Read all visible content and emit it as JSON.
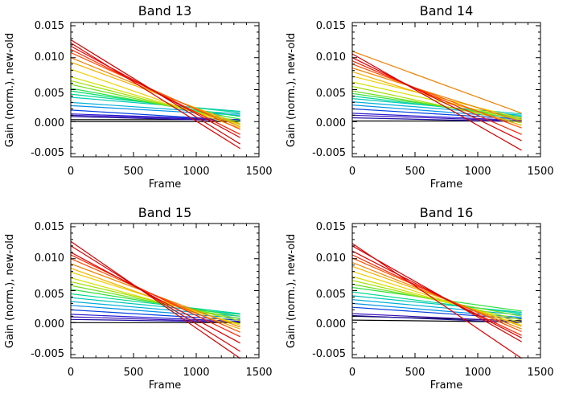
{
  "chart_data": [
    {
      "type": "line",
      "title": "Band 13",
      "xlabel": "Frame",
      "ylabel": "Gain (norm.), new-old",
      "xlim": [
        0,
        1500
      ],
      "ylim": [
        -0.0055,
        0.0155
      ],
      "xticks": [
        "0",
        "500",
        "1000",
        "1500"
      ],
      "yticks": [
        "0.015",
        "0.010",
        "0.005",
        "0.000",
        "-0.005"
      ],
      "x": [
        0,
        1350
      ],
      "series": [
        {
          "color": "#000000",
          "values": [
            0.0,
            0.0
          ]
        },
        {
          "color": "#000000",
          "values": [
            0.0003,
            0.0003
          ]
        },
        {
          "color": "#1f0fa0",
          "values": [
            0.0008,
            0.0001
          ]
        },
        {
          "color": "#3a12b8",
          "values": [
            0.001,
            0.0002
          ]
        },
        {
          "color": "#2a1ad0",
          "values": [
            0.0012,
            0.0003
          ]
        },
        {
          "color": "#0040e0",
          "values": [
            0.0018,
            0.0002
          ]
        },
        {
          "color": "#0090e8",
          "values": [
            0.0025,
            0.001
          ]
        },
        {
          "color": "#00b0d8",
          "values": [
            0.003,
            0.0012
          ]
        },
        {
          "color": "#00c8b8",
          "values": [
            0.0038,
            0.0016
          ]
        },
        {
          "color": "#00d890",
          "values": [
            0.0043,
            0.0014
          ]
        },
        {
          "color": "#00e070",
          "values": [
            0.0048,
            0.0008
          ]
        },
        {
          "color": "#30e040",
          "values": [
            0.0052,
            0.0004
          ]
        },
        {
          "color": "#70e020",
          "values": [
            0.0058,
            0.0
          ]
        },
        {
          "color": "#a0e000",
          "values": [
            0.0064,
            -0.0003
          ]
        },
        {
          "color": "#d0e000",
          "values": [
            0.007,
            -0.0005
          ]
        },
        {
          "color": "#f0d000",
          "values": [
            0.0082,
            -0.001
          ]
        },
        {
          "color": "#f5b000",
          "values": [
            0.0093,
            -0.0004
          ]
        },
        {
          "color": "#f08000",
          "values": [
            0.01,
            -0.0008
          ]
        },
        {
          "color": "#ff5000",
          "values": [
            0.0108,
            -0.0012
          ]
        },
        {
          "color": "#ff2000",
          "values": [
            0.0113,
            -0.002
          ]
        },
        {
          "color": "#e00000",
          "values": [
            0.0118,
            -0.0025
          ]
        },
        {
          "color": "#e00000",
          "values": [
            0.0123,
            -0.0042
          ]
        },
        {
          "color": "#d00000",
          "values": [
            0.0128,
            -0.0035
          ]
        }
      ]
    },
    {
      "type": "line",
      "title": "Band 14",
      "xlabel": "Frame",
      "ylabel": "Gain (norm.), new-old",
      "xlim": [
        0,
        1500
      ],
      "ylim": [
        -0.0055,
        0.0155
      ],
      "xticks": [
        "0",
        "500",
        "1000",
        "1500"
      ],
      "yticks": [
        "0.015",
        "0.010",
        "0.005",
        "0.000",
        "-0.005"
      ],
      "x": [
        0,
        1350
      ],
      "series": [
        {
          "color": "#000000",
          "values": [
            0.0001,
            0.0001
          ]
        },
        {
          "color": "#1f0fa0",
          "values": [
            0.0006,
            0.0
          ]
        },
        {
          "color": "#3a12b8",
          "values": [
            0.001,
            0.0001
          ]
        },
        {
          "color": "#2a1ad0",
          "values": [
            0.0013,
            0.0002
          ]
        },
        {
          "color": "#0040e0",
          "values": [
            0.002,
            0.0004
          ]
        },
        {
          "color": "#0090e8",
          "values": [
            0.0026,
            0.0006
          ]
        },
        {
          "color": "#00b0d8",
          "values": [
            0.0031,
            0.001
          ]
        },
        {
          "color": "#00c8b8",
          "values": [
            0.0036,
            0.0012
          ]
        },
        {
          "color": "#00d890",
          "values": [
            0.004,
            0.0008
          ]
        },
        {
          "color": "#30e040",
          "values": [
            0.0044,
            0.0006
          ]
        },
        {
          "color": "#70e020",
          "values": [
            0.0048,
            0.0003
          ]
        },
        {
          "color": "#a0e000",
          "values": [
            0.0055,
            -0.0002
          ]
        },
        {
          "color": "#d0e000",
          "values": [
            0.0062,
            0.0003
          ]
        },
        {
          "color": "#f0d000",
          "values": [
            0.0071,
            0.0005
          ]
        },
        {
          "color": "#f5b000",
          "values": [
            0.0078,
            -0.0006
          ]
        },
        {
          "color": "#f08000",
          "values": [
            0.0084,
            0.0
          ]
        },
        {
          "color": "#ff5000",
          "values": [
            0.009,
            -0.001
          ]
        },
        {
          "color": "#ff2000",
          "values": [
            0.0095,
            -0.002
          ]
        },
        {
          "color": "#e00000",
          "values": [
            0.01,
            -0.003
          ]
        },
        {
          "color": "#d00000",
          "values": [
            0.0106,
            -0.0045
          ]
        },
        {
          "color": "#f08000",
          "values": [
            0.011,
            0.0013
          ]
        }
      ]
    },
    {
      "type": "line",
      "title": "Band 15",
      "xlabel": "Frame",
      "ylabel": "Gain (norm.), new-old",
      "xlim": [
        0,
        1500
      ],
      "ylim": [
        -0.0055,
        0.0155
      ],
      "xticks": [
        "0",
        "500",
        "1000",
        "1500"
      ],
      "yticks": [
        "0.015",
        "0.010",
        "0.005",
        "0.000",
        "-0.005"
      ],
      "x": [
        0,
        1350
      ],
      "series": [
        {
          "color": "#000000",
          "values": [
            0.0,
            0.0
          ]
        },
        {
          "color": "#1f0fa0",
          "values": [
            0.0005,
            0.0001
          ]
        },
        {
          "color": "#3a12b8",
          "values": [
            0.0009,
            0.0001
          ]
        },
        {
          "color": "#2a1ad0",
          "values": [
            0.0013,
            0.0002
          ]
        },
        {
          "color": "#0040e0",
          "values": [
            0.002,
            0.0004
          ]
        },
        {
          "color": "#0090e8",
          "values": [
            0.0027,
            0.0007
          ]
        },
        {
          "color": "#00b0d8",
          "values": [
            0.0033,
            0.001
          ]
        },
        {
          "color": "#00c8b8",
          "values": [
            0.0039,
            0.0013
          ]
        },
        {
          "color": "#00d890",
          "values": [
            0.0045,
            0.0014
          ]
        },
        {
          "color": "#30e040",
          "values": [
            0.0052,
            0.001
          ]
        },
        {
          "color": "#70e020",
          "values": [
            0.0058,
            0.0006
          ]
        },
        {
          "color": "#a0e000",
          "values": [
            0.0064,
            0.0003
          ]
        },
        {
          "color": "#d0e000",
          "values": [
            0.007,
            -0.0002
          ]
        },
        {
          "color": "#f0d000",
          "values": [
            0.0079,
            -0.0004
          ]
        },
        {
          "color": "#f5b000",
          "values": [
            0.0085,
            -0.001
          ]
        },
        {
          "color": "#f08000",
          "values": [
            0.0092,
            -0.0007
          ]
        },
        {
          "color": "#ff5000",
          "values": [
            0.01,
            -0.0015
          ]
        },
        {
          "color": "#ff2000",
          "values": [
            0.0106,
            -0.0022
          ]
        },
        {
          "color": "#e00000",
          "values": [
            0.011,
            -0.0032
          ]
        },
        {
          "color": "#e00000",
          "values": [
            0.012,
            -0.0045
          ]
        },
        {
          "color": "#d00000",
          "values": [
            0.0127,
            -0.0056
          ]
        }
      ]
    },
    {
      "type": "line",
      "title": "Band 16",
      "xlabel": "Frame",
      "ylabel": "Gain (norm.), new-old",
      "xlim": [
        0,
        1500
      ],
      "ylim": [
        -0.0055,
        0.0155
      ],
      "xticks": [
        "0",
        "500",
        "1000",
        "1500"
      ],
      "yticks": [
        "0.015",
        "0.010",
        "0.005",
        "0.000",
        "-0.005"
      ],
      "x": [
        0,
        1350
      ],
      "series": [
        {
          "color": "#000000",
          "values": [
            0.0004,
            0.0001
          ]
        },
        {
          "color": "#000000",
          "values": [
            0.001,
            0.0003
          ]
        },
        {
          "color": "#1f0fa0",
          "values": [
            0.0011,
            0.0
          ]
        },
        {
          "color": "#3a12b8",
          "values": [
            0.0014,
            0.0002
          ]
        },
        {
          "color": "#0040e0",
          "values": [
            0.0024,
            0.0006
          ]
        },
        {
          "color": "#0090e8",
          "values": [
            0.003,
            0.0008
          ]
        },
        {
          "color": "#00b0d8",
          "values": [
            0.0036,
            0.0012
          ]
        },
        {
          "color": "#00c8b8",
          "values": [
            0.0042,
            0.0016
          ]
        },
        {
          "color": "#00d890",
          "values": [
            0.0048,
            0.0014
          ]
        },
        {
          "color": "#30e040",
          "values": [
            0.0055,
            0.0018
          ]
        },
        {
          "color": "#70e020",
          "values": [
            0.006,
            0.001
          ]
        },
        {
          "color": "#a0e000",
          "values": [
            0.0066,
            0.0004
          ]
        },
        {
          "color": "#d0e000",
          "values": [
            0.0072,
            0.0
          ]
        },
        {
          "color": "#f0d000",
          "values": [
            0.008,
            -0.0004
          ]
        },
        {
          "color": "#f5b000",
          "values": [
            0.0088,
            -0.0006
          ]
        },
        {
          "color": "#f08000",
          "values": [
            0.0094,
            -0.001
          ]
        },
        {
          "color": "#ff5000",
          "values": [
            0.0101,
            -0.0014
          ]
        },
        {
          "color": "#ff2000",
          "values": [
            0.0106,
            -0.002
          ]
        },
        {
          "color": "#e00000",
          "values": [
            0.0112,
            -0.0024
          ]
        },
        {
          "color": "#d00000",
          "values": [
            0.012,
            -0.003
          ]
        },
        {
          "color": "#e00000",
          "values": [
            0.0124,
            -0.0056
          ]
        }
      ]
    }
  ]
}
